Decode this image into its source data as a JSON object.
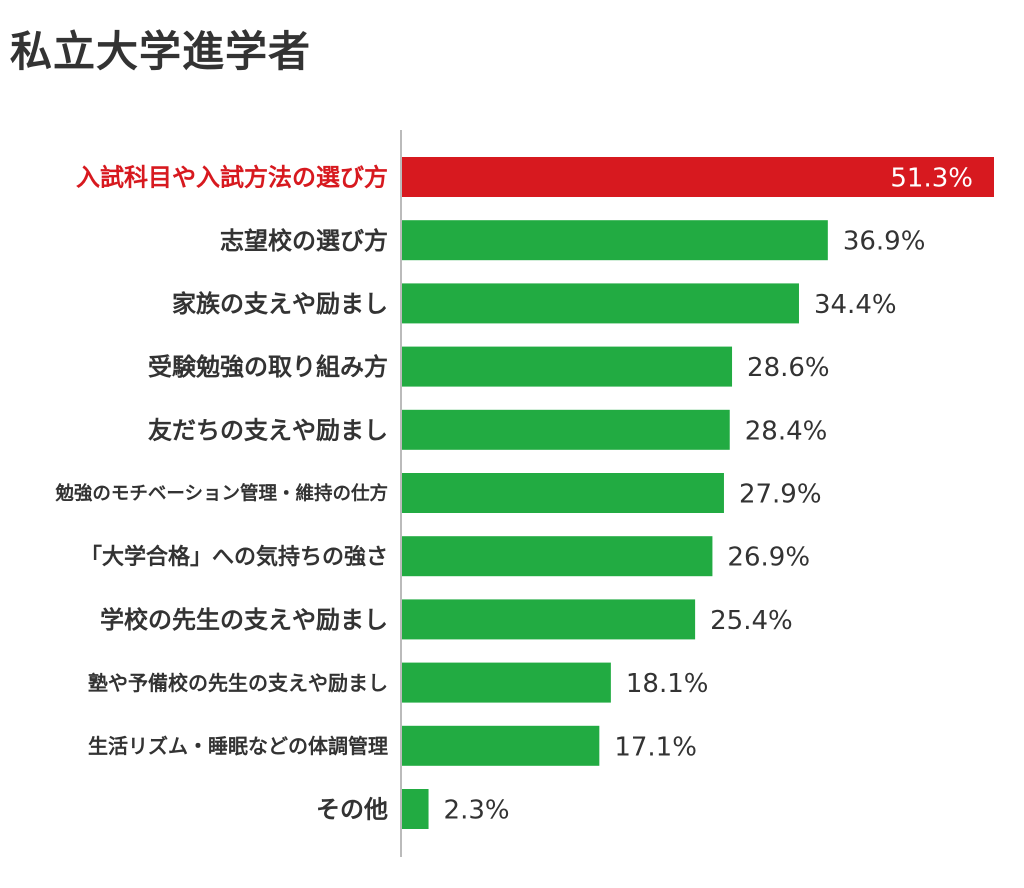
{
  "chart_data": {
    "type": "bar",
    "orientation": "horizontal",
    "title": "私立大学進学者",
    "categories": [
      "入試科目や入試方法の選び方",
      "志望校の選び方",
      "家族の支えや励まし",
      "受験勉強の取り組み方",
      "友だちの支えや励まし",
      "勉強のモチベーション管理・維持の仕方",
      "「大学合格」への気持ちの強さ",
      "学校の先生の支えや励まし",
      "塾や予備校の先生の支えや励まし",
      "生活リズム・睡眠などの体調管理",
      "その他"
    ],
    "values": [
      51.3,
      36.9,
      34.4,
      28.6,
      28.4,
      27.9,
      26.9,
      25.4,
      18.1,
      17.1,
      2.3
    ],
    "value_labels": [
      "51.3%",
      "36.9%",
      "34.4%",
      "28.6%",
      "28.4%",
      "27.9%",
      "26.9%",
      "25.4%",
      "18.1%",
      "17.1%",
      "2.3%"
    ],
    "highlight_index": 0,
    "colors": {
      "highlight": "#d7191f",
      "bar": "#22ab42",
      "label": "#333333",
      "axis": "#bbbbbb",
      "highlight_value_text": "#ffffff"
    },
    "xlim": [
      0,
      51.3
    ],
    "grid": false,
    "legend": "none"
  }
}
